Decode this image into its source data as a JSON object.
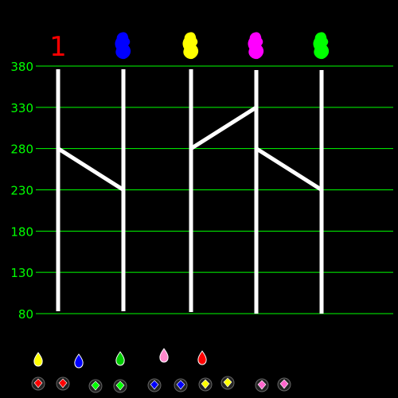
{
  "colors": {
    "background": "#000000",
    "grid": "#00ff00",
    "axis_text": "#00ff00",
    "pole": "#ffffff",
    "path": "#ffffff"
  },
  "axis": {
    "min": 80,
    "max": 380,
    "ticks": [
      {
        "value": 380,
        "label": "380"
      },
      {
        "value": 330,
        "label": "330"
      },
      {
        "value": 280,
        "label": "280"
      },
      {
        "value": 230,
        "label": "230"
      },
      {
        "value": 180,
        "label": "180"
      },
      {
        "value": 130,
        "label": "130"
      },
      {
        "value": 80,
        "label": "80"
      }
    ]
  },
  "players": [
    {
      "id": "p1",
      "label": "1",
      "color": "#ff0000",
      "bottom": 80
    },
    {
      "id": "p2",
      "label": "",
      "color": "#0000ff",
      "bottom": 80
    },
    {
      "id": "p3",
      "label": "",
      "color": "#ffff00",
      "bottom": 80
    },
    {
      "id": "p4",
      "label": "",
      "color": "#ff00ff",
      "bottom": 80
    },
    {
      "id": "p5",
      "label": "",
      "color": "#00ff00",
      "bottom": 80
    }
  ],
  "path_points": [
    {
      "pole": 0,
      "value": 280
    },
    {
      "pole": 1,
      "value": 230
    },
    null,
    {
      "pole": 2,
      "value": 280
    },
    {
      "pole": 3,
      "value": 330
    },
    null,
    {
      "pole": 3,
      "value": 280
    },
    {
      "pole": 4,
      "value": 230
    }
  ],
  "drops": [
    {
      "color": "#ffff00",
      "shape": "drop"
    },
    {
      "color": "#0000ff",
      "shape": "drop"
    },
    {
      "color": "#00cc00",
      "shape": "drop"
    },
    {
      "color": "#ff88cc",
      "shape": "drop"
    },
    {
      "color": "#ff0000",
      "shape": "drop"
    }
  ],
  "gems": [
    {
      "color": "#ff0000"
    },
    {
      "color": "#ff0000"
    },
    {
      "color": "#00ff00"
    },
    {
      "color": "#00ff00"
    },
    {
      "color": "#0000ff"
    },
    {
      "color": "#0000ff"
    },
    {
      "color": "#ffff00"
    },
    {
      "color": "#ffff00"
    },
    {
      "color": "#ff66cc"
    },
    {
      "color": "#ff66cc"
    }
  ]
}
